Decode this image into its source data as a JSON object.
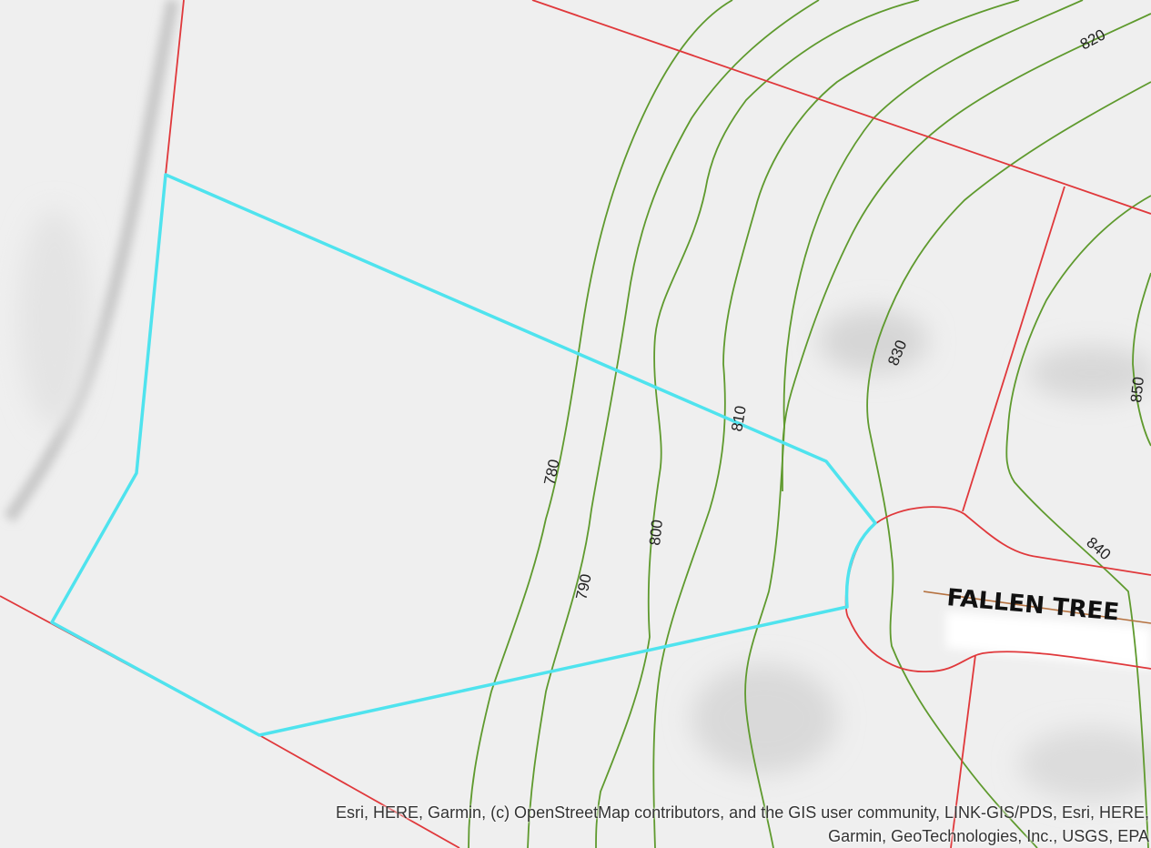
{
  "map": {
    "road_label": "FALLEN TREE",
    "contour_labels": [
      "780",
      "790",
      "800",
      "810",
      "820",
      "830",
      "840",
      "850"
    ],
    "colors": {
      "background": "#efefef",
      "contour": "#5f9a2e",
      "parcel_boundary": "#e0383b",
      "selected_parcel": "#4fe3ee",
      "road_centerline": "#b5713f"
    }
  },
  "attribution": {
    "line1": "Esri, HERE, Garmin, (c) OpenStreetMap contributors, and the GIS user community, LINK-GIS/PDS, Esri, HERE,",
    "line2": "Garmin, GeoTechnologies, Inc., USGS, EPA"
  }
}
